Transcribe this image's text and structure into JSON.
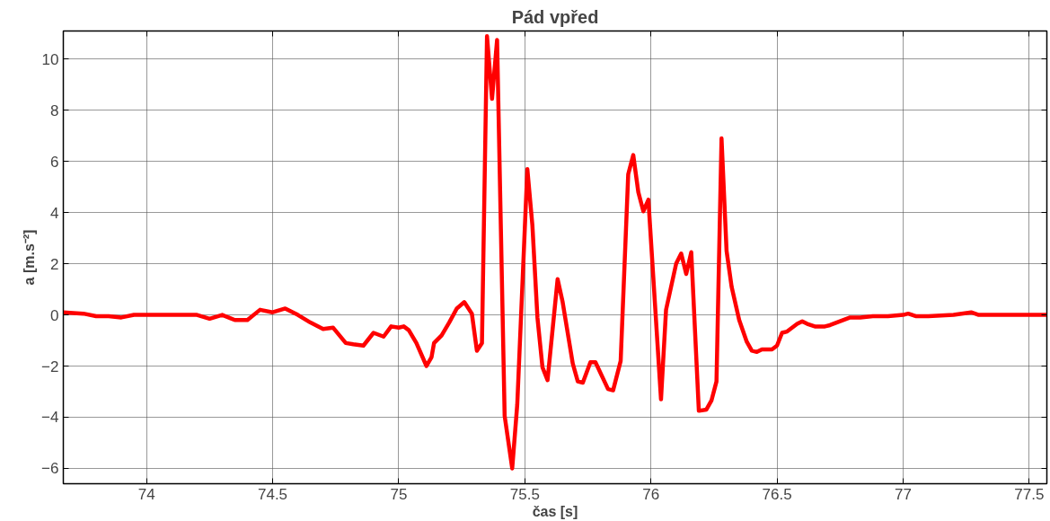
{
  "chart_data": {
    "type": "line",
    "title": "Pád vpřed",
    "xlabel": "čas [s]",
    "ylabel": "a [m.s⁻²]",
    "xlim": [
      73.67,
      77.57
    ],
    "ylim": [
      -6.6,
      11.1
    ],
    "xticks": [
      74,
      74.5,
      75,
      75.5,
      76,
      76.5,
      77,
      77.5
    ],
    "yticks": [
      -6,
      -4,
      -2,
      0,
      2,
      4,
      6,
      8,
      10
    ],
    "grid": true,
    "line_style": "solid",
    "marker": "none",
    "series": [
      {
        "color": "#ff0000",
        "x": [
          73.67,
          73.75,
          73.8,
          73.85,
          73.9,
          73.95,
          74.0,
          74.1,
          74.2,
          74.25,
          74.3,
          74.35,
          74.4,
          74.45,
          74.5,
          74.55,
          74.6,
          74.65,
          74.7,
          74.74,
          74.79,
          74.82,
          74.86,
          74.9,
          74.94,
          74.97,
          75.0,
          75.02,
          75.04,
          75.07,
          75.11,
          75.13,
          75.14,
          75.17,
          75.2,
          75.23,
          75.26,
          75.29,
          75.31,
          75.33,
          75.35,
          75.37,
          75.39,
          75.42,
          75.45,
          75.47,
          75.51,
          75.53,
          75.55,
          75.57,
          75.59,
          75.63,
          75.65,
          75.69,
          75.71,
          75.73,
          75.76,
          75.78,
          75.83,
          75.85,
          75.88,
          75.91,
          75.93,
          75.95,
          75.97,
          75.99,
          76.04,
          76.06,
          76.1,
          76.12,
          76.14,
          76.16,
          76.19,
          76.22,
          76.24,
          76.26,
          76.28,
          76.3,
          76.32,
          76.35,
          76.38,
          76.4,
          76.42,
          76.44,
          76.48,
          76.5,
          76.52,
          76.54,
          76.58,
          76.6,
          76.62,
          76.65,
          76.69,
          76.71,
          76.75,
          76.79,
          76.83,
          76.88,
          76.94,
          77.0,
          77.02,
          77.05,
          77.1,
          77.2,
          77.27,
          77.3,
          77.4,
          77.5,
          77.57
        ],
        "values": [
          0.1,
          0.05,
          -0.05,
          -0.05,
          -0.1,
          0,
          0,
          0,
          0,
          -0.15,
          0,
          -0.2,
          -0.2,
          0.2,
          0.1,
          0.25,
          0.0,
          -0.3,
          -0.55,
          -0.5,
          -1.1,
          -1.15,
          -1.2,
          -0.7,
          -0.85,
          -0.45,
          -0.5,
          -0.45,
          -0.6,
          -1.1,
          -2.0,
          -1.65,
          -1.1,
          -0.8,
          -0.3,
          0.25,
          0.5,
          0.05,
          -1.4,
          -1.1,
          10.9,
          8.45,
          10.75,
          -3.95,
          -6.0,
          -3.5,
          5.7,
          3.5,
          -0.1,
          -2.05,
          -2.55,
          1.4,
          0.5,
          -1.9,
          -2.6,
          -2.65,
          -1.85,
          -1.85,
          -2.9,
          -2.95,
          -1.8,
          5.5,
          6.25,
          4.8,
          4.05,
          4.5,
          -3.3,
          0.2,
          2.0,
          2.4,
          1.6,
          2.45,
          -3.75,
          -3.7,
          -3.35,
          -2.6,
          6.9,
          2.5,
          1.1,
          -0.2,
          -1.05,
          -1.4,
          -1.45,
          -1.35,
          -1.35,
          -1.2,
          -0.7,
          -0.65,
          -0.35,
          -0.25,
          -0.35,
          -0.45,
          -0.45,
          -0.4,
          -0.25,
          -0.1,
          -0.1,
          -0.05,
          -0.05,
          0.0,
          0.05,
          -0.05,
          -0.05,
          0.0,
          0.1,
          0.0,
          0.0,
          0.0,
          0.0
        ]
      }
    ]
  }
}
